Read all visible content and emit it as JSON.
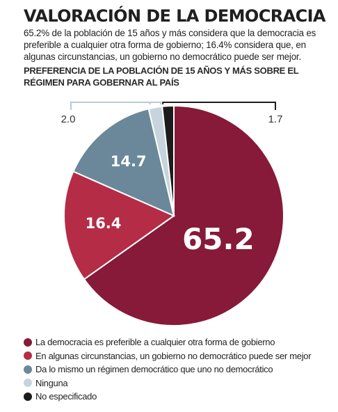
{
  "header": {
    "title": "VALORACIÓN DE LA DEMOCRACIA",
    "description": "65.2% de la población de 15 años y más considera que la democracia es preferible a cualquier otra forma de gobierno; 16.4% considera que, en algunas circunstancias, un gobierno no democrático puede ser mejor.",
    "subtitle": "PREFERENCIA DE LA POBLACIÓN DE 15 AÑOS Y MÁS SOBRE EL RÉGIMEN PARA GOBERNAR AL PAÍS"
  },
  "chart_data": {
    "type": "pie",
    "title": "PREFERENCIA DE LA POBLACIÓN DE 15 AÑOS Y MÁS SOBRE EL RÉGIMEN PARA GOBERNAR AL PAÍS",
    "start": "12 o'clock, clockwise",
    "legend_position": "bottom",
    "slices": [
      {
        "label": "La democracia es preferible a cualquier otra forma de gobierno",
        "value": 65.2,
        "display": "65.2",
        "color": "#861a38"
      },
      {
        "label": "En algunas circunstancias, un gobierno no democrático puede ser mejor",
        "value": 16.4,
        "display": "16.4",
        "color": "#b52c46"
      },
      {
        "label": "Da lo mismo un régimen democrático que uno no democrático",
        "value": 14.7,
        "display": "14.7",
        "color": "#6a8899"
      },
      {
        "label": "Ninguna",
        "value": 2.0,
        "display": "2.0",
        "color": "#c7d4dd"
      },
      {
        "label": "No especificado",
        "value": 1.7,
        "display": "1.7",
        "color": "#1c1c1c"
      }
    ]
  }
}
